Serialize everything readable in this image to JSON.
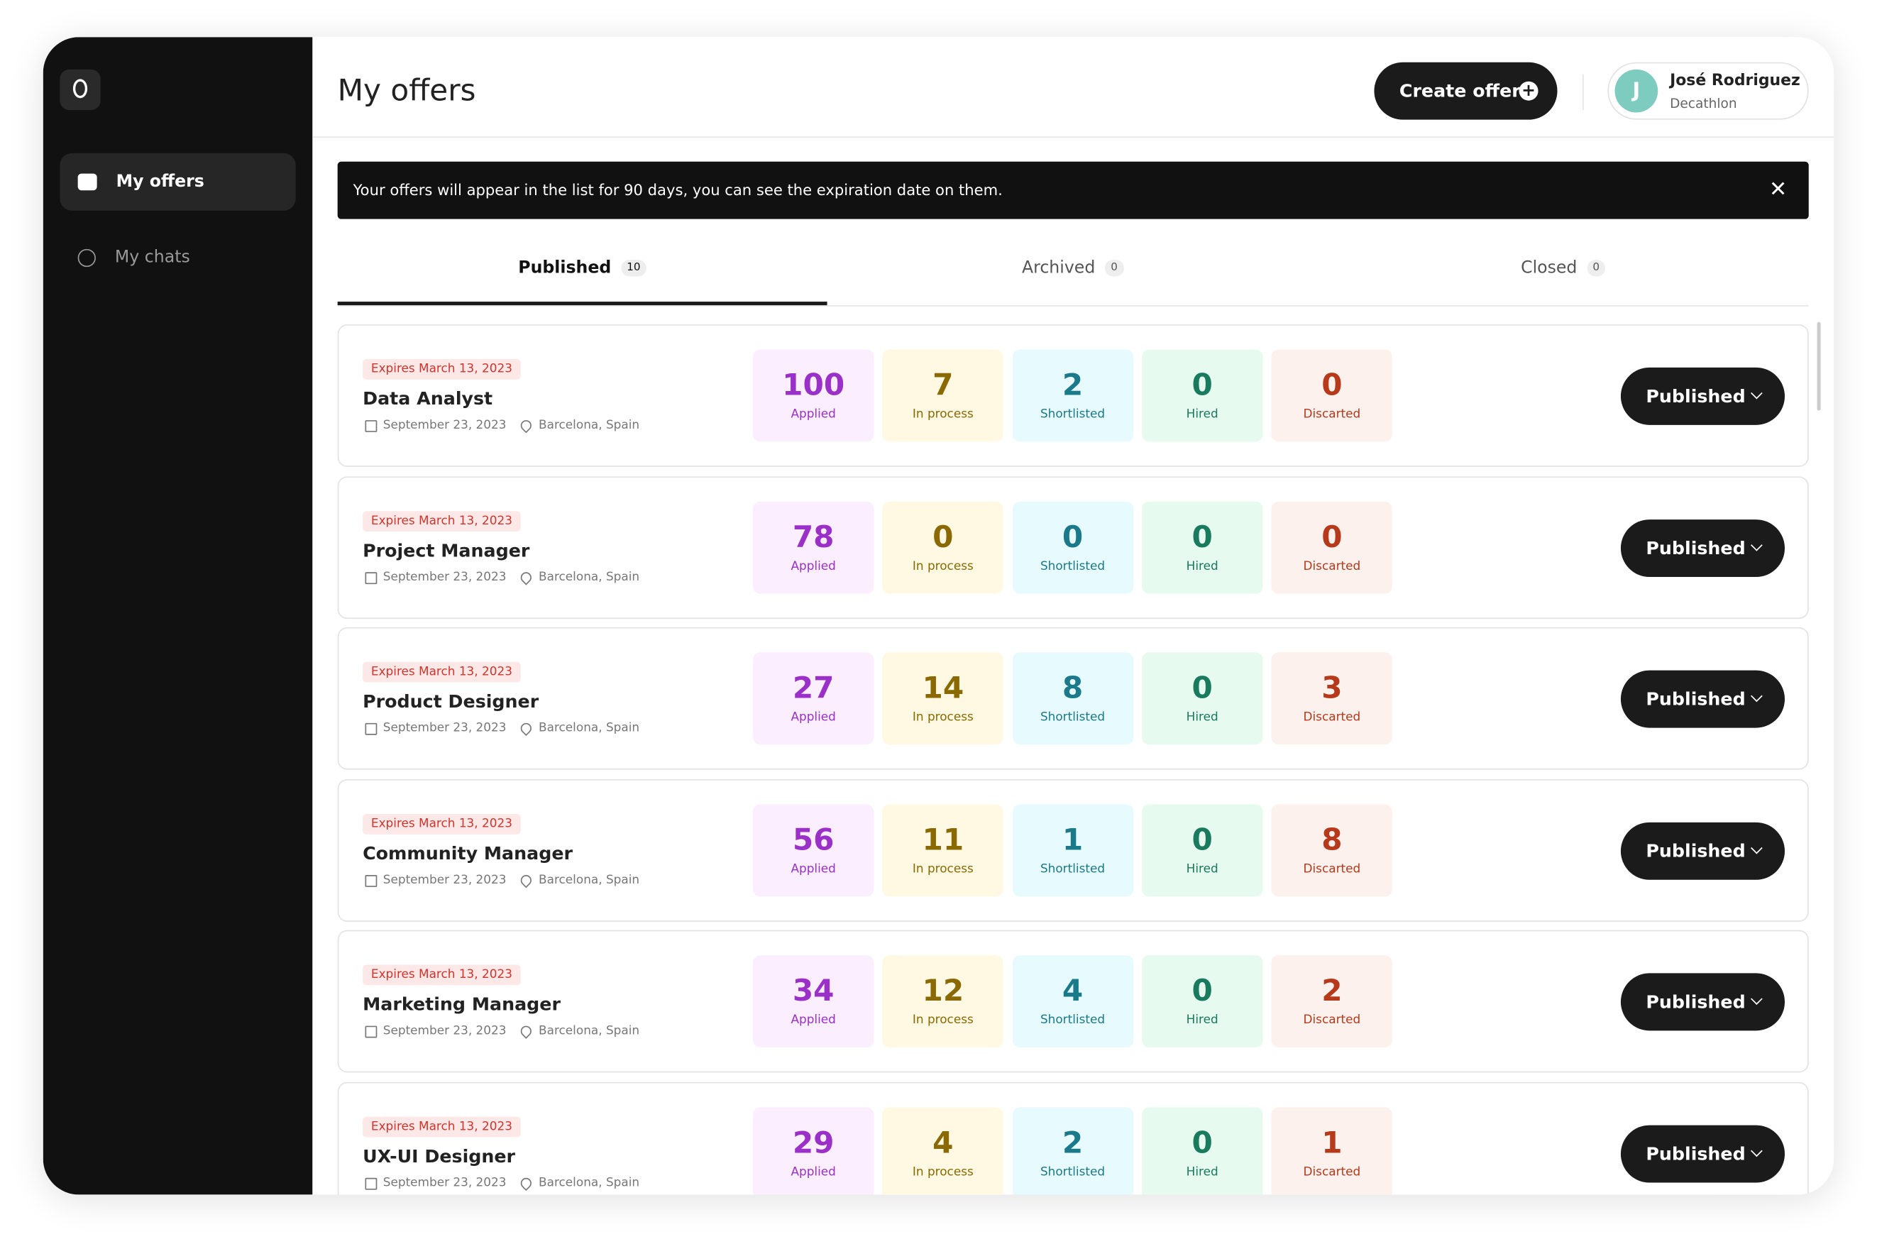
{
  "sidebar": {
    "items": [
      "My offers",
      "My chats"
    ]
  },
  "header": {
    "title": "My offers",
    "button": "Create offer",
    "user": {
      "initial": "J",
      "name": "José Rodriguez",
      "company": "Decathlon"
    }
  },
  "banner": "Your offers will appear in the list for 90 days, you can see the expiration date on them.",
  "tabs": [
    {
      "label": "Published",
      "count": 10
    },
    {
      "label": "Archived",
      "count": 0
    },
    {
      "label": "Closed",
      "count": 0
    }
  ],
  "offers": [
    {
      "expires": "Expires March 13, 2023",
      "title": "Data Analyst",
      "date": "September 23, 2023",
      "location": "Barcelona, Spain",
      "status": "Published",
      "stats": [
        {
          "value": 100,
          "label": "Applied"
        },
        {
          "value": 7,
          "label": "In process"
        },
        {
          "value": 2,
          "label": "Shortlisted"
        },
        {
          "value": 0,
          "label": "Hired"
        },
        {
          "value": 0,
          "label": "Discarted"
        }
      ]
    },
    {
      "expires": "Expires March 13, 2023",
      "title": "Project Manager",
      "date": "September 23, 2023",
      "location": "Barcelona, Spain",
      "status": "Published",
      "stats": [
        {
          "value": 78,
          "label": "Applied"
        },
        {
          "value": 0,
          "label": "In process"
        },
        {
          "value": 0,
          "label": "Shortlisted"
        },
        {
          "value": 0,
          "label": "Hired"
        },
        {
          "value": 0,
          "label": "Discarted"
        }
      ]
    },
    {
      "expires": "Expires March 13, 2023",
      "title": "Product Designer",
      "date": "September 23, 2023",
      "location": "Barcelona, Spain",
      "status": "Published",
      "stats": [
        {
          "value": 27,
          "label": "Applied"
        },
        {
          "value": 14,
          "label": "In process"
        },
        {
          "value": 8,
          "label": "Shortlisted"
        },
        {
          "value": 0,
          "label": "Hired"
        },
        {
          "value": 3,
          "label": "Discarted"
        }
      ]
    },
    {
      "expires": "Expires March 13, 2023",
      "title": "Community Manager",
      "date": "September 23, 2023",
      "location": "Barcelona, Spain",
      "status": "Published",
      "stats": [
        {
          "value": 56,
          "label": "Applied"
        },
        {
          "value": 11,
          "label": "In process"
        },
        {
          "value": 1,
          "label": "Shortlisted"
        },
        {
          "value": 0,
          "label": "Hired"
        },
        {
          "value": 8,
          "label": "Discarted"
        }
      ]
    },
    {
      "expires": "Expires March 13, 2023",
      "title": "Marketing Manager",
      "date": "September 23, 2023",
      "location": "Barcelona, Spain",
      "status": "Published",
      "stats": [
        {
          "value": 34,
          "label": "Applied"
        },
        {
          "value": 12,
          "label": "In process"
        },
        {
          "value": 4,
          "label": "Shortlisted"
        },
        {
          "value": 0,
          "label": "Hired"
        },
        {
          "value": 2,
          "label": "Discarted"
        }
      ]
    },
    {
      "expires": "Expires March 13, 2023",
      "title": "UX-UI Designer",
      "date": "September 23, 2023",
      "location": "Barcelona, Spain",
      "status": "Published",
      "stats": [
        {
          "value": 29,
          "label": "Applied"
        },
        {
          "value": 4,
          "label": "In process"
        },
        {
          "value": 2,
          "label": "Shortlisted"
        },
        {
          "value": 0,
          "label": "Hired"
        },
        {
          "value": 1,
          "label": "Discarted"
        }
      ]
    }
  ]
}
